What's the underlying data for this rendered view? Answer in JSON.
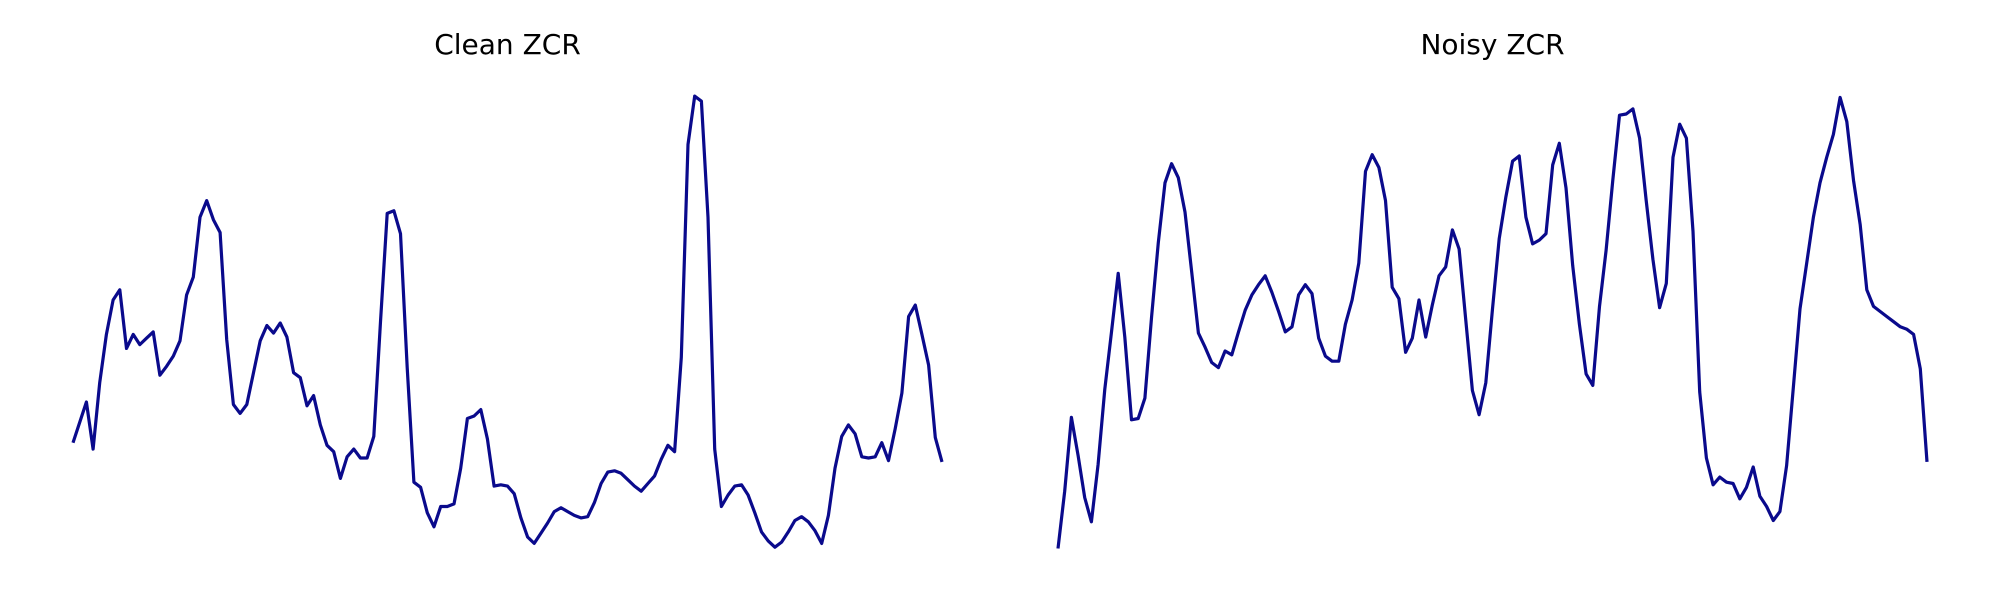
{
  "chart_data": [
    {
      "type": "line",
      "title": "Clean ZCR",
      "color": "#0a0a8c",
      "ylim": [
        10,
        400
      ],
      "values": [
        113,
        129,
        145,
        108,
        160,
        198,
        225,
        233,
        187,
        198,
        190,
        195,
        200,
        166,
        173,
        181,
        193,
        229,
        243,
        290,
        303,
        288,
        278,
        194,
        143,
        136,
        143,
        168,
        193,
        205,
        199,
        207,
        196,
        168,
        164,
        142,
        150,
        127,
        111,
        106,
        85,
        102,
        108,
        101,
        101,
        118,
        208,
        293,
        295,
        277,
        172,
        82,
        78,
        58,
        47,
        63,
        63,
        65,
        93,
        132,
        134,
        139,
        116,
        79,
        80,
        79,
        73,
        54,
        39,
        34,
        42,
        50,
        59,
        62,
        59,
        56,
        54,
        55,
        66,
        81,
        90,
        91,
        89,
        84,
        79,
        75,
        81,
        87,
        100,
        111,
        106,
        180,
        347,
        385,
        381,
        290,
        108,
        63,
        72,
        79,
        80,
        72,
        58,
        43,
        36,
        31,
        35,
        43,
        52,
        55,
        51,
        44,
        34,
        56,
        93,
        118,
        127,
        120,
        102,
        101,
        102,
        113,
        99,
        124,
        152,
        212,
        221,
        198,
        174,
        117,
        98
      ]
    },
    {
      "type": "line",
      "title": "Noisy ZCR",
      "color": "#0a0a8c",
      "ylim": [
        10,
        400
      ],
      "values": [
        30,
        75,
        133,
        103,
        70,
        51,
        96,
        155,
        200,
        246,
        196,
        131,
        132,
        148,
        212,
        270,
        317,
        332,
        321,
        294,
        247,
        199,
        188,
        176,
        172,
        185,
        182,
        200,
        217,
        229,
        237,
        244,
        231,
        216,
        200,
        204,
        229,
        237,
        230,
        195,
        181,
        177,
        177,
        206,
        225,
        254,
        326,
        339,
        329,
        303,
        235,
        226,
        184,
        195,
        225,
        196,
        221,
        244,
        251,
        280,
        265,
        209,
        154,
        135,
        160,
        218,
        273,
        306,
        334,
        338,
        290,
        269,
        272,
        277,
        331,
        348,
        313,
        252,
        206,
        167,
        158,
        220,
        264,
        319,
        370,
        371,
        375,
        352,
        303,
        257,
        219,
        238,
        337,
        363,
        352,
        279,
        153,
        101,
        80,
        86,
        82,
        81,
        69,
        78,
        94,
        71,
        63,
        52,
        59,
        95,
        156,
        218,
        254,
        290,
        317,
        337,
        355,
        384,
        365,
        319,
        284,
        233,
        220,
        216,
        212,
        208,
        204,
        202,
        198,
        171,
        98
      ]
    }
  ]
}
